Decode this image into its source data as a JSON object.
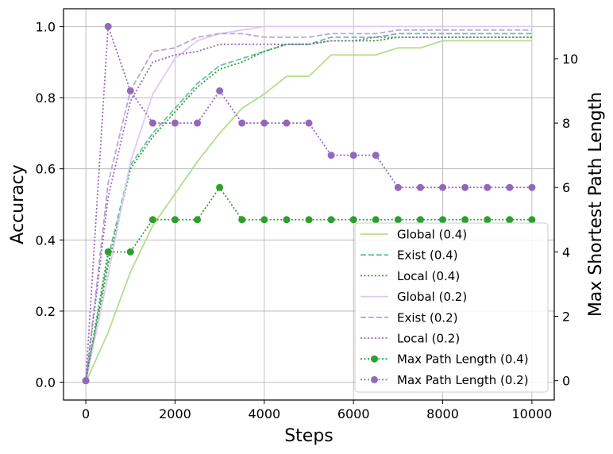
{
  "chart_data": {
    "type": "line",
    "xlabel": "Steps",
    "ylabel": "Accuracy",
    "y2label": "Max Shortest Path Length",
    "xlim": [
      -500,
      10500
    ],
    "ylim": [
      -0.05,
      1.05
    ],
    "y2lim": [
      -0.6,
      11.55
    ],
    "xticks": [
      0,
      2000,
      4000,
      6000,
      8000,
      10000
    ],
    "xtick_labels": [
      "0",
      "2000",
      "4000",
      "6000",
      "8000",
      "10000"
    ],
    "yticks": [
      0.0,
      0.2,
      0.4,
      0.6,
      0.8,
      1.0
    ],
    "ytick_labels": [
      "0.0",
      "0.2",
      "0.4",
      "0.6",
      "0.8",
      "1.0"
    ],
    "y2ticks": [
      0,
      2,
      4,
      6,
      8,
      10
    ],
    "y2tick_labels": [
      "0",
      "2",
      "4",
      "6",
      "8",
      "10"
    ],
    "grid": true,
    "legend_position": "lower-right",
    "series": [
      {
        "name": "Global (0.4)",
        "axis": "left",
        "color": "#b2df8a",
        "dash": "solid",
        "marker": false,
        "x": [
          0,
          500,
          1000,
          1500,
          2000,
          2500,
          3000,
          3500,
          4000,
          4500,
          5000,
          5500,
          6000,
          6500,
          7000,
          7500,
          8000,
          8500,
          9000,
          9500,
          10000
        ],
        "y": [
          0.0,
          0.14,
          0.31,
          0.44,
          0.53,
          0.62,
          0.7,
          0.77,
          0.81,
          0.86,
          0.86,
          0.92,
          0.92,
          0.92,
          0.94,
          0.94,
          0.96,
          0.96,
          0.96,
          0.96,
          0.96
        ]
      },
      {
        "name": "Exist (0.4)",
        "axis": "left",
        "color": "#66c2a5",
        "dash": "dashed",
        "marker": false,
        "x": [
          0,
          500,
          1000,
          1500,
          2000,
          2500,
          3000,
          3500,
          4000,
          4500,
          5000,
          5500,
          6000,
          6500,
          7000,
          7500,
          8000,
          8500,
          9000,
          9500,
          10000
        ],
        "y": [
          0.0,
          0.35,
          0.61,
          0.7,
          0.77,
          0.84,
          0.89,
          0.91,
          0.93,
          0.95,
          0.95,
          0.97,
          0.97,
          0.97,
          0.98,
          0.98,
          0.98,
          0.98,
          0.98,
          0.98,
          0.98
        ]
      },
      {
        "name": "Local (0.4)",
        "axis": "left",
        "color": "#2ca02c",
        "dash": "dotted",
        "marker": false,
        "x": [
          0,
          500,
          1000,
          1500,
          2000,
          2500,
          3000,
          3500,
          4000,
          4500,
          5000,
          5500,
          6000,
          6500,
          7000,
          7500,
          8000,
          8500,
          9000,
          9500,
          10000
        ],
        "y": [
          0.0,
          0.33,
          0.6,
          0.69,
          0.76,
          0.83,
          0.88,
          0.9,
          0.93,
          0.95,
          0.95,
          0.96,
          0.96,
          0.96,
          0.97,
          0.97,
          0.97,
          0.97,
          0.97,
          0.97,
          0.97
        ]
      },
      {
        "name": "Global (0.2)",
        "axis": "left",
        "color": "#e0c8f5",
        "dash": "solid",
        "marker": false,
        "x": [
          0,
          500,
          1000,
          1500,
          2000,
          2500,
          3000,
          3500,
          4000,
          4500,
          5000,
          5500,
          6000,
          6500,
          7000,
          7500,
          8000,
          8500,
          9000,
          9500,
          10000
        ],
        "y": [
          0.0,
          0.3,
          0.62,
          0.81,
          0.91,
          0.96,
          0.98,
          0.99,
          1.0,
          1.0,
          1.0,
          1.0,
          1.0,
          1.0,
          1.0,
          1.0,
          1.0,
          1.0,
          1.0,
          1.0,
          1.0
        ]
      },
      {
        "name": "Exist (0.2)",
        "axis": "left",
        "color": "#b7a9d6",
        "dash": "dashed",
        "marker": false,
        "x": [
          0,
          500,
          1000,
          1500,
          2000,
          2500,
          3000,
          3500,
          4000,
          4500,
          5000,
          5500,
          6000,
          6500,
          7000,
          7500,
          8000,
          8500,
          9000,
          9500,
          10000
        ],
        "y": [
          0.0,
          0.56,
          0.82,
          0.93,
          0.94,
          0.97,
          0.98,
          0.98,
          0.97,
          0.97,
          0.97,
          0.98,
          0.98,
          0.98,
          0.99,
          0.99,
          0.99,
          0.99,
          0.99,
          0.99,
          0.99
        ]
      },
      {
        "name": "Local (0.2)",
        "axis": "left",
        "color": "#9467bd",
        "dash": "dotted",
        "marker": false,
        "x": [
          0,
          500,
          1000,
          1500,
          2000,
          2500,
          3000,
          3500,
          4000,
          4500,
          5000,
          5500,
          6000,
          6500,
          7000,
          7500,
          8000,
          8500,
          9000,
          9500,
          10000
        ],
        "y": [
          0.0,
          0.52,
          0.79,
          0.9,
          0.92,
          0.93,
          0.95,
          0.95,
          0.95,
          0.95,
          0.95,
          0.96,
          0.96,
          0.97,
          0.97,
          0.97,
          0.97,
          0.97,
          0.97,
          0.97,
          0.97
        ]
      },
      {
        "name": "Max Path Length (0.4)",
        "axis": "right",
        "color": "#2ca02c",
        "dash": "dotted",
        "marker": true,
        "x": [
          0,
          500,
          1000,
          1500,
          2000,
          2500,
          3000,
          3500,
          4000,
          4500,
          5000,
          5500,
          6000,
          6500,
          7000,
          7500,
          8000,
          8500,
          9000,
          9500,
          10000
        ],
        "y": [
          0,
          4,
          4,
          5,
          5,
          5,
          6,
          5,
          5,
          5,
          5,
          5,
          5,
          5,
          5,
          5,
          5,
          5,
          5,
          5,
          5
        ]
      },
      {
        "name": "Max Path Length (0.2)",
        "axis": "right",
        "color": "#9467bd",
        "dash": "dotted",
        "marker": true,
        "x": [
          0,
          500,
          1000,
          1500,
          2000,
          2500,
          3000,
          3500,
          4000,
          4500,
          5000,
          5500,
          6000,
          6500,
          7000,
          7500,
          8000,
          8500,
          9000,
          9500,
          10000
        ],
        "y": [
          0,
          11,
          9,
          8,
          8,
          8,
          9,
          8,
          8,
          8,
          8,
          7,
          7,
          7,
          6,
          6,
          6,
          6,
          6,
          6,
          6
        ]
      }
    ]
  }
}
